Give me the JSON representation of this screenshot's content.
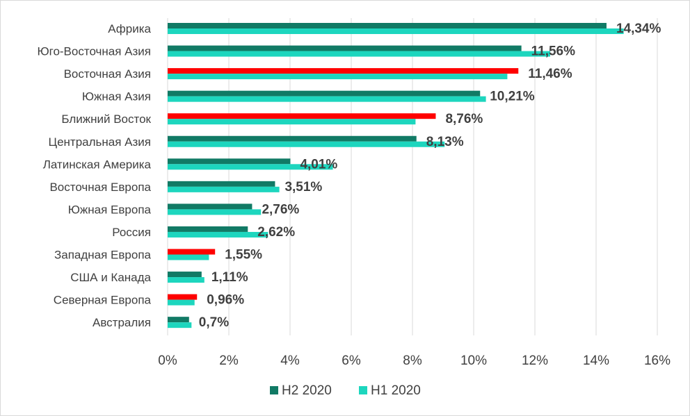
{
  "chart_data": {
    "type": "bar",
    "orientation": "horizontal",
    "categories": [
      "Африка",
      "Юго-Восточная Азия",
      "Восточная Азия",
      "Южная Азия",
      "Ближний Восток",
      "Центральная Азия",
      "Латинская Америка",
      "Восточная Европа",
      "Южная Европа",
      "Россия",
      "Западная Европа",
      "США и Канада",
      "Северная Европа",
      "Австралия"
    ],
    "series": [
      {
        "name": "H2 2020",
        "color": "#117a65",
        "values": [
          14.34,
          11.56,
          11.46,
          10.21,
          8.76,
          8.13,
          4.01,
          3.51,
          2.76,
          2.62,
          1.55,
          1.11,
          0.96,
          0.7
        ]
      },
      {
        "name": "H1 2020",
        "color": "#1dd6be",
        "values": [
          14.9,
          12.5,
          11.1,
          10.4,
          8.1,
          9.05,
          5.4,
          3.65,
          3.05,
          3.28,
          1.35,
          1.2,
          0.88,
          0.78
        ]
      }
    ],
    "highlight_color": "#ff0000",
    "highlighted_categories": [
      "Восточная Азия",
      "Ближний Восток",
      "Западная Европа",
      "Северная Европа"
    ],
    "data_labels": [
      "14,34%",
      "11,56%",
      "11,46%",
      "10,21%",
      "8,76%",
      "8,13%",
      "4,01%",
      "3,51%",
      "2,76%",
      "2,62%",
      "1,55%",
      "1,11%",
      "0,96%",
      "0,7%"
    ],
    "x_ticks": [
      "0%",
      "2%",
      "4%",
      "6%",
      "8%",
      "10%",
      "12%",
      "14%",
      "16%"
    ],
    "xlim": [
      0,
      16
    ],
    "grid": true,
    "legend_position": "bottom",
    "title": "",
    "xlabel": "",
    "ylabel": ""
  }
}
